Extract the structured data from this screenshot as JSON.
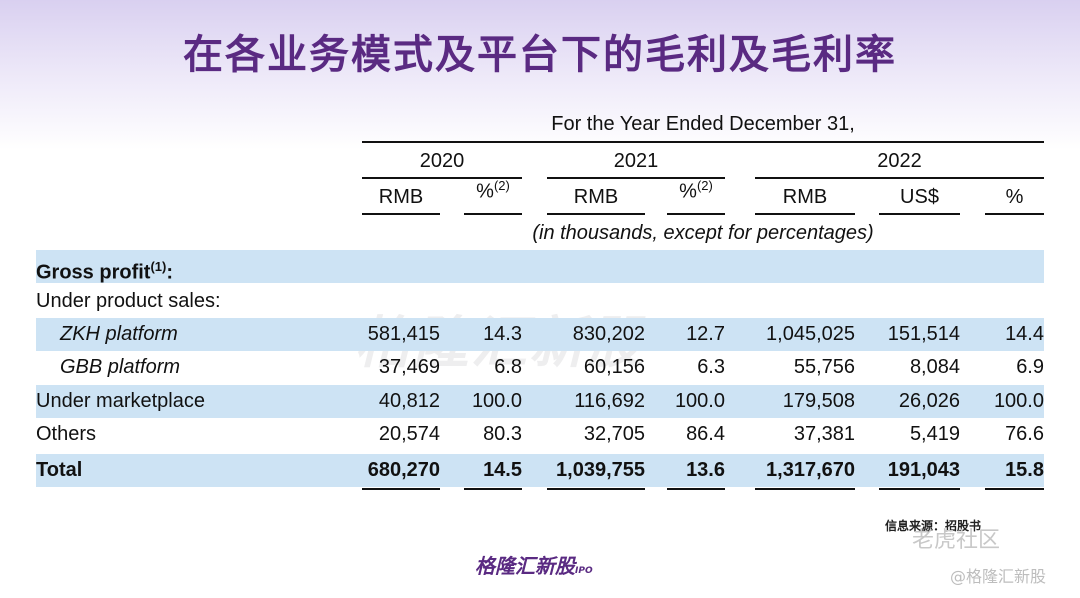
{
  "title": "在各业务模式及平台下的毛利及毛利率",
  "header": {
    "period": "For the Year Ended December 31,",
    "years": [
      "2020",
      "2021",
      "2022"
    ],
    "units": [
      "RMB",
      "%",
      "RMB",
      "%",
      "RMB",
      "US$",
      "%"
    ],
    "footnote_ref": "(2)",
    "note": "(in thousands, except for percentages)"
  },
  "rows": [
    {
      "label": "Gross profit",
      "sup": "(1)",
      "suffix": ":",
      "values": [
        "",
        "",
        "",
        "",
        "",
        "",
        ""
      ]
    },
    {
      "label": "Under product sales:",
      "values": [
        "",
        "",
        "",
        "",
        "",
        "",
        ""
      ]
    },
    {
      "label": "ZKH platform",
      "values": [
        "581,415",
        "14.3",
        "830,202",
        "12.7",
        "1,045,025",
        "151,514",
        "14.4"
      ]
    },
    {
      "label": "GBB platform",
      "values": [
        "37,469",
        "6.8",
        "60,156",
        "6.3",
        "55,756",
        "8,084",
        "6.9"
      ]
    },
    {
      "label": "Under marketplace",
      "values": [
        "40,812",
        "100.0",
        "116,692",
        "100.0",
        "179,508",
        "26,026",
        "100.0"
      ]
    },
    {
      "label": "Others",
      "values": [
        "20,574",
        "80.3",
        "32,705",
        "86.4",
        "37,381",
        "5,419",
        "76.6"
      ]
    },
    {
      "label": "Total",
      "values": [
        "680,270",
        "14.5",
        "1,039,755",
        "13.6",
        "1,317,670",
        "191,043",
        "15.8"
      ]
    }
  ],
  "source": "信息来源：招股书",
  "logo": {
    "text": "格隆汇新股",
    "sub": "IPO"
  },
  "watermarks": {
    "center": "格隆汇新股",
    "tiger": "老虎社区",
    "handle": "@格隆汇新股"
  },
  "colors": {
    "title": "#5a2a82",
    "band": "#cde3f4"
  }
}
